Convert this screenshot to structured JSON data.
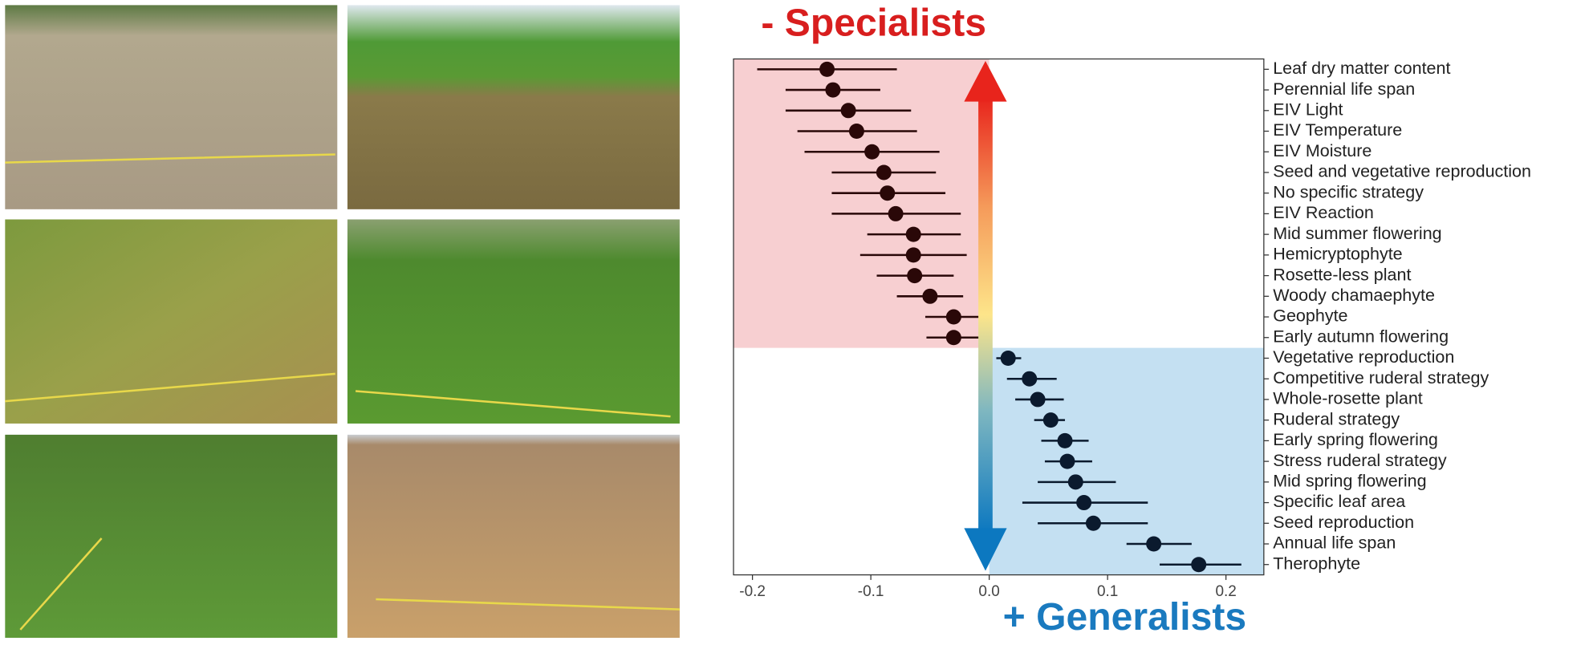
{
  "chart_data": {
    "type": "errorbar",
    "annotations": [
      "- Specialists",
      "+ Generalists"
    ],
    "categories": [
      "Leaf dry matter content",
      "Perennial life span",
      "EIV Light",
      "EIV Temperature",
      "EIV Moisture",
      "Seed and vegetative reproduction",
      "No specific strategy",
      "EIV Reaction",
      "Mid summer flowering",
      "Hemicryptophyte",
      "Rosette-less plant",
      "Woody chamaephyte",
      "Geophyte",
      "Early autumn flowering",
      "Vegetative reproduction",
      "Competitive ruderal strategy",
      "Whole-rosette plant",
      "Ruderal strategy",
      "Early spring flowering",
      "Stress ruderal strategy",
      "Mid spring flowering",
      "Specific leaf area",
      "Seed reproduction",
      "Annual life span",
      "Therophyte"
    ],
    "values": [
      -0.137,
      -0.132,
      -0.119,
      -0.112,
      -0.099,
      -0.089,
      -0.086,
      -0.079,
      -0.064,
      -0.064,
      -0.063,
      -0.05,
      -0.03,
      -0.03,
      0.016,
      0.034,
      0.041,
      0.052,
      0.064,
      0.066,
      0.073,
      0.08,
      0.088,
      0.139,
      0.177
    ],
    "lower": [
      -0.196,
      -0.172,
      -0.172,
      -0.162,
      -0.156,
      -0.133,
      -0.133,
      -0.133,
      -0.103,
      -0.109,
      -0.095,
      -0.078,
      -0.054,
      -0.053,
      0.006,
      0.015,
      0.022,
      0.038,
      0.044,
      0.047,
      0.041,
      0.028,
      0.041,
      0.116,
      0.144
    ],
    "upper": [
      -0.078,
      -0.092,
      -0.066,
      -0.061,
      -0.042,
      -0.045,
      -0.037,
      -0.024,
      -0.024,
      -0.019,
      -0.03,
      -0.022,
      -0.008,
      -0.008,
      0.027,
      0.057,
      0.063,
      0.064,
      0.084,
      0.087,
      0.107,
      0.134,
      0.134,
      0.171,
      0.213
    ],
    "colors": {
      "negative": "#2a0808",
      "positive": "#0b1a2e",
      "negative_region": "#f7cfd1",
      "positive_region": "#c4e0f2"
    },
    "xlim": [
      -0.216,
      0.232
    ],
    "xticks": [
      -0.2,
      -0.1,
      {
        "value": 0,
        "label": "0.0"
      },
      0.1,
      0.2
    ]
  }
}
